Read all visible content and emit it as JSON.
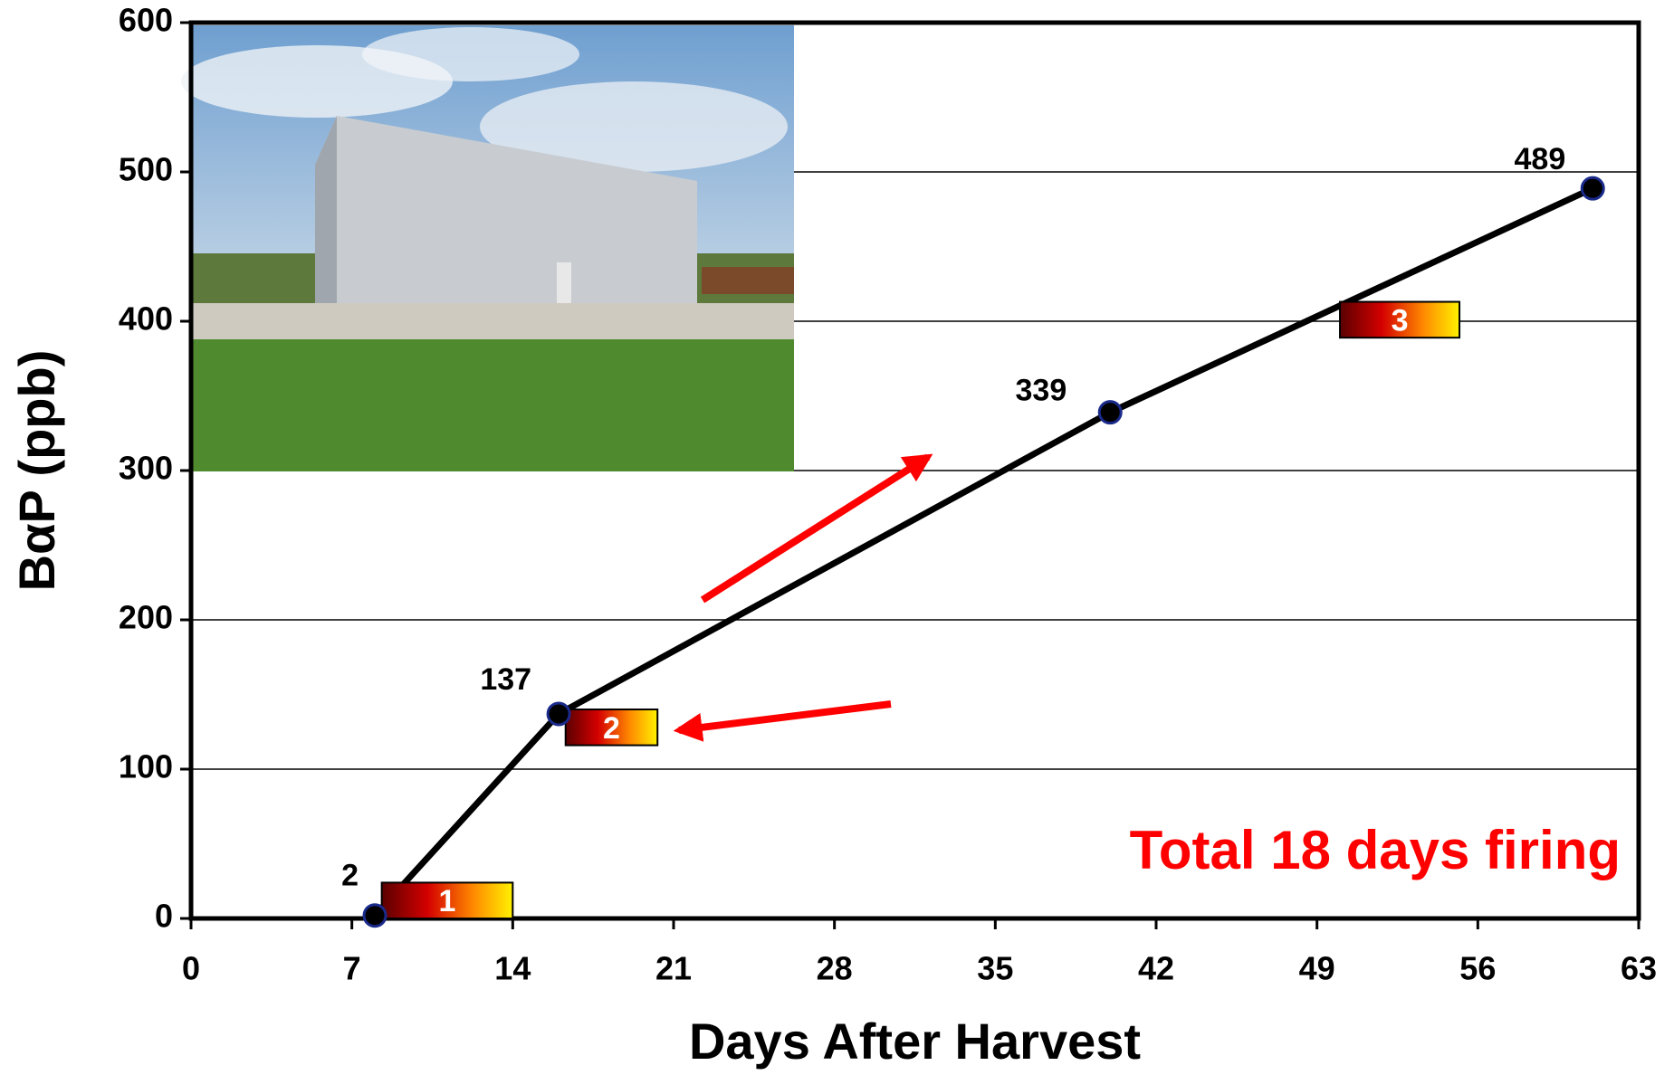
{
  "chart_data": {
    "type": "line",
    "x": [
      8,
      16,
      40,
      61
    ],
    "values": [
      2,
      137,
      339,
      489
    ],
    "color": "#000000",
    "marker_color": "#1a2a8a",
    "xlabel": "Days After Harvest",
    "ylabel": "BαP (ppb)",
    "annotation": "Total 18 days firing",
    "annotation_color": "#ff0000",
    "xlim": [
      0,
      63
    ],
    "xticks": [
      0,
      7,
      14,
      21,
      28,
      35,
      42,
      49,
      56,
      63
    ],
    "ylim": [
      0,
      600
    ],
    "yticks": [
      0,
      100,
      200,
      300,
      400,
      500,
      600
    ],
    "grid": true,
    "firing_periods": [
      {
        "label": "1",
        "start": 8.3,
        "end": 14,
        "low": 0,
        "high": 24
      },
      {
        "label": "2",
        "start": 16.3,
        "end": 20.3,
        "low": 116,
        "high": 140
      },
      {
        "label": "3",
        "start": 50,
        "end": 55.2,
        "low": 389,
        "high": 413
      }
    ]
  }
}
